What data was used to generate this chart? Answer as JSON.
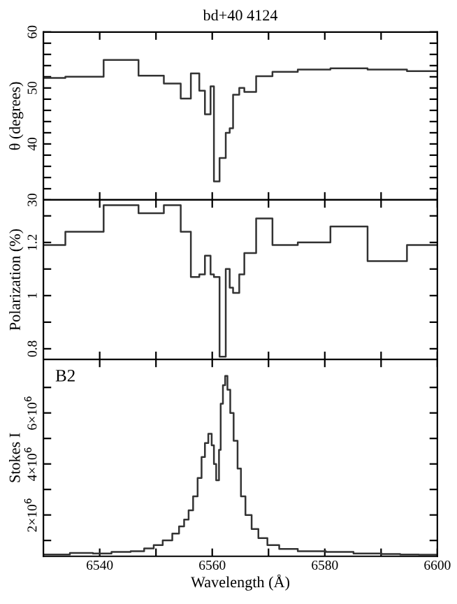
{
  "chart_data": [
    {
      "type": "step",
      "title": "bd+40 4124",
      "ylabel": "θ (degrees)",
      "color": "#333333",
      "tick_labels": "y",
      "x": [
        6530.0,
        6533.9,
        6540.7,
        6546.9,
        6551.4,
        6554.4,
        6556.2,
        6557.7,
        6558.7,
        6559.7,
        6560.3,
        6561.3,
        6562.4,
        6563.1,
        6563.7,
        6564.8,
        6565.7,
        6567.8,
        6570.7,
        6575.2,
        6581.0,
        6587.6,
        6594.6,
        6600.0
      ],
      "values": [
        51.8,
        52.0,
        55.0,
        52.2,
        50.8,
        48.1,
        52.6,
        49.5,
        45.3,
        50.3,
        33.3,
        37.5,
        42.0,
        42.8,
        48.8,
        50.0,
        49.3,
        52.1,
        52.9,
        53.3,
        53.5,
        53.3,
        53.0,
        53.0
      ],
      "xlim": [
        6530,
        6600
      ],
      "ylim": [
        30,
        60
      ],
      "xticks": [
        6540,
        {
          "value": 6550,
          "label": null
        },
        6560,
        {
          "value": 6570,
          "label": null
        },
        6580,
        {
          "value": 6590,
          "label": null
        },
        6600
      ],
      "yticks": [
        30,
        {
          "value": 32,
          "label": null
        },
        {
          "value": 34,
          "label": null
        },
        {
          "value": 36,
          "label": null
        },
        {
          "value": 38,
          "label": null
        },
        40,
        {
          "value": 42,
          "label": null
        },
        {
          "value": 44,
          "label": null
        },
        {
          "value": 46,
          "label": null
        },
        {
          "value": 48,
          "label": null
        },
        50,
        {
          "value": 52,
          "label": null
        },
        {
          "value": 54,
          "label": null
        },
        {
          "value": 56,
          "label": null
        },
        {
          "value": 58,
          "label": null
        },
        60
      ]
    },
    {
      "type": "step",
      "ylabel": "Polarization (%)",
      "color": "#333333",
      "tick_labels": "y",
      "x": [
        6530.0,
        6533.9,
        6540.7,
        6546.9,
        6551.4,
        6554.4,
        6556.2,
        6557.7,
        6558.7,
        6559.7,
        6560.3,
        6561.3,
        6562.4,
        6563.1,
        6563.7,
        6564.8,
        6565.7,
        6567.8,
        6570.7,
        6575.2,
        6581.0,
        6587.6,
        6594.6,
        6600.0
      ],
      "values": [
        1.19,
        1.24,
        1.34,
        1.31,
        1.34,
        1.24,
        1.07,
        1.08,
        1.15,
        1.08,
        1.07,
        0.77,
        1.1,
        1.03,
        1.01,
        1.08,
        1.16,
        1.29,
        1.19,
        1.2,
        1.26,
        1.13,
        1.19,
        1.19
      ],
      "xlim": [
        6530,
        6600
      ],
      "ylim": [
        0.76,
        1.36
      ],
      "xticks": [
        6540,
        {
          "value": 6550,
          "label": null
        },
        6560,
        {
          "value": 6570,
          "label": null
        },
        6580,
        {
          "value": 6590,
          "label": null
        },
        6600
      ],
      "yticks": [
        0.8,
        {
          "value": 0.9,
          "label": null
        },
        1,
        {
          "value": 1.1,
          "label": null
        },
        1.2,
        {
          "value": 1.3,
          "label": null
        }
      ]
    },
    {
      "type": "step",
      "ylabel": "Stokes I",
      "xlabel": "Wavelength (Å)",
      "color": "#333333",
      "annotations": [
        "B2"
      ],
      "x": [
        6530.0,
        6534.7,
        6538.8,
        6542.1,
        6545.5,
        6547.9,
        6549.6,
        6551.2,
        6552.9,
        6554.1,
        6555.0,
        6555.8,
        6556.6,
        6557.4,
        6558.1,
        6558.7,
        6559.3,
        6559.9,
        6560.3,
        6560.7,
        6561.2,
        6561.5,
        6561.9,
        6562.3,
        6562.7,
        6563.2,
        6563.8,
        6564.5,
        6565.1,
        6565.9,
        6567.0,
        6568.2,
        6569.8,
        6571.9,
        6575.2,
        6580.2,
        6585.1,
        6590.1,
        6593.4,
        6596.7,
        6600.0
      ],
      "values": [
        450000,
        510000,
        490000,
        550000,
        580000,
        690000,
        820000,
        1000000,
        1270000,
        1550000,
        1820000,
        2180000,
        2730000,
        3450000,
        4270000,
        4820000,
        5180000,
        4730000,
        4000000,
        3360000,
        4550000,
        6360000,
        7090000,
        7450000,
        6910000,
        6000000,
        4910000,
        3820000,
        2730000,
        2000000,
        1450000,
        1090000,
        820000,
        670000,
        580000,
        550000,
        490000,
        470000,
        450000,
        440000,
        420000
      ],
      "xlim": [
        6530,
        6600
      ],
      "ylim": [
        380000,
        8100000
      ],
      "xticks": [
        6540,
        {
          "value": 6550,
          "label": null
        },
        6560,
        {
          "value": 6570,
          "label": null
        },
        6580,
        {
          "value": 6590,
          "label": null
        },
        6600
      ],
      "yticks": [
        {
          "value": 1000000,
          "label": null
        },
        {
          "value": 2000000,
          "label": "2×10$^{6}$"
        },
        {
          "value": 3000000,
          "label": null
        },
        {
          "value": 4000000,
          "label": "4×10$^{6}$"
        },
        {
          "value": 5000000,
          "label": null
        },
        {
          "value": 6000000,
          "label": "6×10$^{6}$"
        },
        {
          "value": 7000000,
          "label": null
        }
      ]
    }
  ]
}
